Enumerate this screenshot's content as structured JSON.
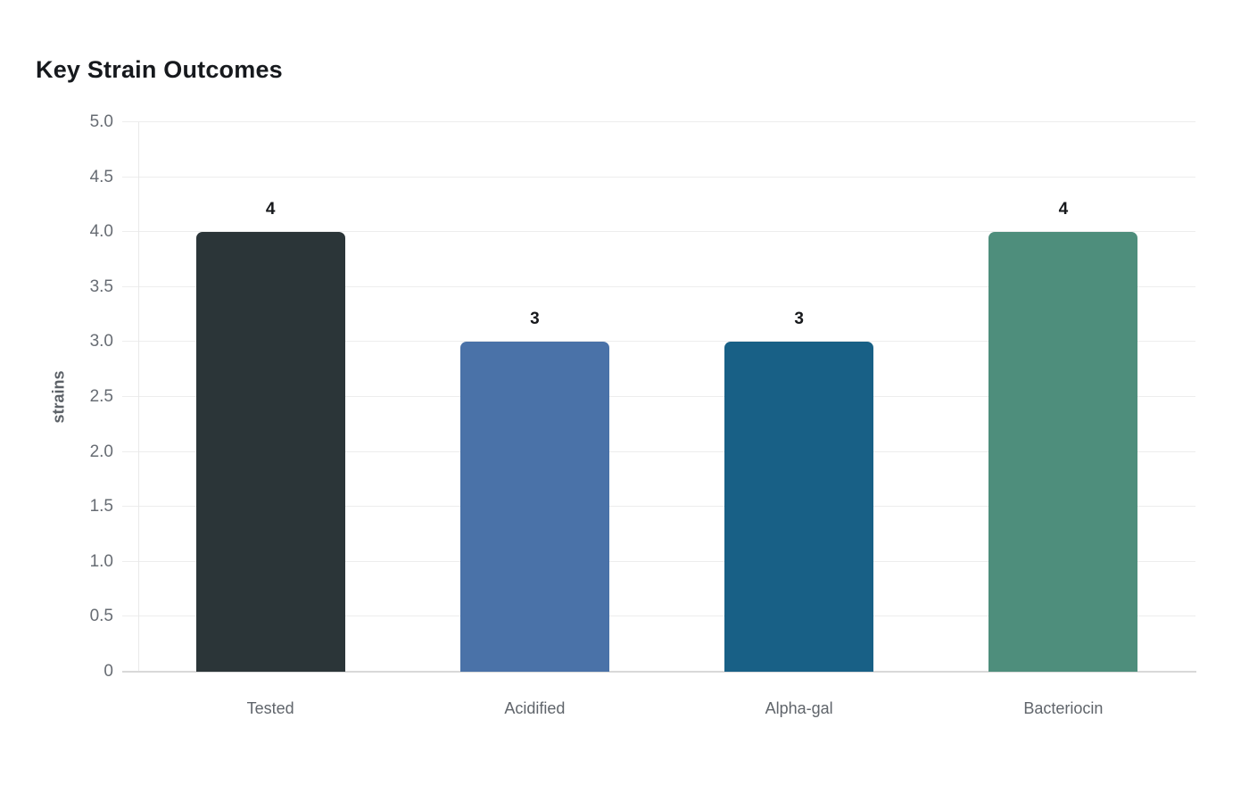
{
  "chart_data": {
    "type": "bar",
    "title": "Key Strain Outcomes",
    "categories": [
      "Tested",
      "Acidified",
      "Alpha-gal",
      "Bacteriocin"
    ],
    "values": [
      4,
      3,
      3,
      4
    ],
    "data_labels": [
      "4",
      "3",
      "3",
      "4"
    ],
    "bar_colors": [
      "#2b3538",
      "#4a72a8",
      "#186086",
      "#4e8e7c"
    ],
    "xlabel": "",
    "ylabel": "strains",
    "ylim": [
      0,
      5
    ],
    "ytick_step": 0.5,
    "ytick_labels": [
      "0",
      "0.5",
      "1.0",
      "1.5",
      "2.0",
      "2.5",
      "3.0",
      "3.5",
      "4.0",
      "4.5",
      "5.0"
    ],
    "grid": true,
    "legend_position": "none"
  },
  "colors": {
    "background": "#ffffff",
    "title_text": "#16191d",
    "tick_label_text": "#676c73",
    "category_label_text": "#60656b",
    "axis_name_text": "#5c6167",
    "value_label_text": "#17191c",
    "gridline": "#ededed",
    "axis_line": "#d9d9d9",
    "y_axis_line": "#e9e9e9"
  }
}
